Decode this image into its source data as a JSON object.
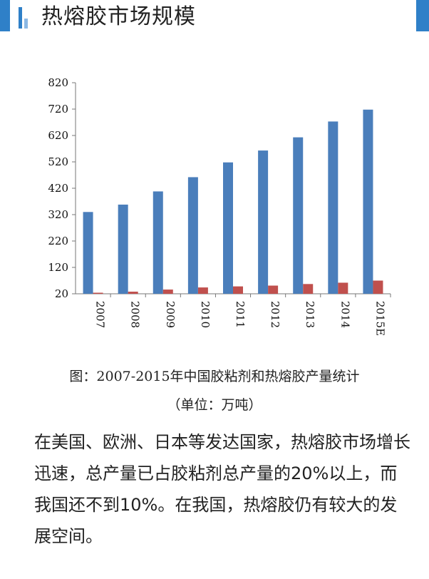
{
  "header": {
    "title": "热熔胶市场规模"
  },
  "chart_data": {
    "type": "bar",
    "categories": [
      "2007",
      "2008",
      "2009",
      "2010",
      "2011",
      "2012",
      "2013",
      "2014",
      "2015E"
    ],
    "series": [
      {
        "values": [
          330,
          358,
          408,
          462,
          518,
          563,
          613,
          673,
          718
        ],
        "color": "#4a7ebb"
      },
      {
        "values": [
          24,
          28,
          36,
          44,
          48,
          51,
          57,
          62,
          70
        ],
        "color": "#c0504d"
      }
    ],
    "y_ticks": [
      20,
      120,
      220,
      320,
      420,
      520,
      620,
      720,
      820
    ],
    "ylim": [
      20,
      820
    ],
    "title": "",
    "xlabel": "",
    "ylabel": "",
    "grid": false
  },
  "caption": {
    "line1": "图：2007-2015年中国胶粘剂和热熔胶产量统计",
    "line2": "（单位：万吨）"
  },
  "paragraph": "在美国、欧洲、日本等发达国家，热熔胶市场增长迅速，总产量已占胶粘剂总产量的20%以上，而我国还不到10%。在我国，热熔胶仍有较大的发展空间。"
}
